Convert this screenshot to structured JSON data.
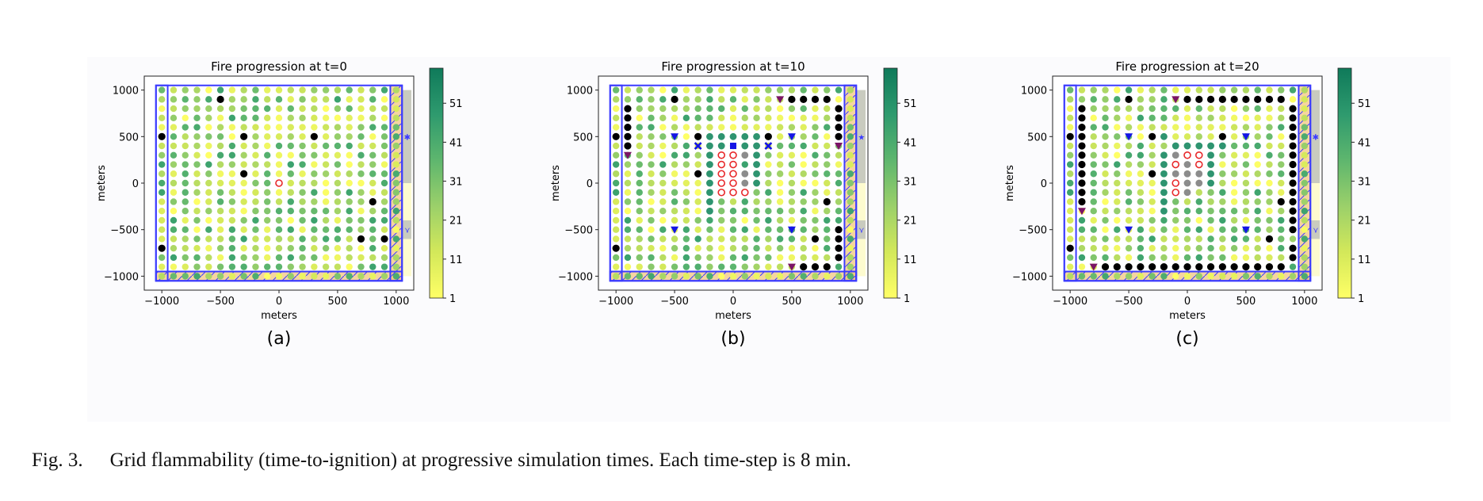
{
  "colors": {
    "cmap": [
      "#ffff66",
      "#d3e85a",
      "#9bd06a",
      "#5eb66e",
      "#2e9a6e",
      "#0f7a5a"
    ],
    "fire_dot": "#000000",
    "burning_ring": "#e8282a",
    "burnt": "#8c8c8c",
    "blue_rect": "#3b3bff",
    "hatch_fill": "#f2c27a",
    "grey_band": "#c9cbbf",
    "yellow_band": "#fdfbcf",
    "purple_marker": "#7b1466",
    "blue_marker": "#1414e6"
  },
  "chart_data": [
    {
      "type": "scatter",
      "title": "Fire progression at t=0",
      "sublabel": "(a)",
      "xlabel": "meters",
      "ylabel": "meters",
      "xlim": [
        -1150,
        1150
      ],
      "ylim": [
        -1150,
        1150
      ],
      "xticks": [
        -1000,
        -500,
        0,
        500,
        1000
      ],
      "xtick_labels": [
        "−1000",
        "−500",
        "0",
        "500",
        "1000"
      ],
      "yticks": [
        -1000,
        -500,
        0,
        500,
        1000
      ],
      "ytick_labels": [
        "−1000",
        "−500",
        "0",
        "500",
        "1000"
      ],
      "colorbar_ticks": [
        "1",
        "11",
        "21",
        "31",
        "41",
        "51"
      ],
      "fire_points": [
        [
          -500,
          900
        ],
        [
          -1000,
          500
        ],
        [
          -300,
          500
        ],
        [
          300,
          500
        ],
        [
          -300,
          100
        ],
        [
          800,
          -200
        ],
        [
          700,
          -600
        ],
        [
          900,
          -600
        ],
        [
          -1000,
          -700
        ]
      ],
      "burning_points": [
        [
          0,
          0
        ]
      ],
      "burnt_points": [],
      "teal_points": [],
      "purple_markers": [],
      "blue_markers": [],
      "side_markers": [
        "✱",
        "⋎"
      ]
    },
    {
      "type": "scatter",
      "title": "Fire progression at t=10",
      "sublabel": "(b)",
      "xlabel": "meters",
      "ylabel": "meters",
      "xlim": [
        -1150,
        1150
      ],
      "ylim": [
        -1150,
        1150
      ],
      "xticks": [
        -1000,
        -500,
        0,
        500,
        1000
      ],
      "xtick_labels": [
        "−1000",
        "−500",
        "0",
        "500",
        "1000"
      ],
      "yticks": [
        -1000,
        -500,
        0,
        500,
        1000
      ],
      "ytick_labels": [
        "−1000",
        "−500",
        "0",
        "500",
        "1000"
      ],
      "colorbar_ticks": [
        "1",
        "11",
        "21",
        "31",
        "41",
        "51"
      ],
      "fire_points": [
        [
          -500,
          900
        ],
        [
          -900,
          800
        ],
        [
          -900,
          700
        ],
        [
          -900,
          600
        ],
        [
          -900,
          500
        ],
        [
          -900,
          400
        ],
        [
          -1000,
          500
        ],
        [
          -300,
          500
        ],
        [
          300,
          500
        ],
        [
          -300,
          100
        ],
        [
          500,
          900
        ],
        [
          600,
          900
        ],
        [
          700,
          900
        ],
        [
          800,
          900
        ],
        [
          900,
          800
        ],
        [
          900,
          700
        ],
        [
          900,
          600
        ],
        [
          900,
          500
        ],
        [
          800,
          -200
        ],
        [
          700,
          -600
        ],
        [
          900,
          -500
        ],
        [
          900,
          -600
        ],
        [
          900,
          -700
        ],
        [
          900,
          -800
        ],
        [
          600,
          -900
        ],
        [
          700,
          -900
        ],
        [
          800,
          -900
        ],
        [
          -1000,
          -700
        ]
      ],
      "burning_points": [
        [
          -100,
          300
        ],
        [
          0,
          300
        ],
        [
          -100,
          200
        ],
        [
          0,
          200
        ],
        [
          -100,
          100
        ],
        [
          0,
          100
        ],
        [
          -100,
          0
        ],
        [
          0,
          0
        ],
        [
          -100,
          -100
        ],
        [
          0,
          -100
        ],
        [
          100,
          -100
        ]
      ],
      "burnt_points": [
        [
          100,
          300
        ],
        [
          100,
          100
        ],
        [
          100,
          0
        ]
      ],
      "teal_points": [
        [
          -200,
          500
        ],
        [
          -100,
          500
        ],
        [
          0,
          500
        ],
        [
          100,
          500
        ],
        [
          200,
          500
        ],
        [
          -200,
          400
        ],
        [
          -100,
          400
        ],
        [
          100,
          400
        ],
        [
          200,
          400
        ],
        [
          -200,
          300
        ],
        [
          200,
          300
        ],
        [
          -200,
          200
        ],
        [
          200,
          200
        ],
        [
          -200,
          100
        ],
        [
          200,
          100
        ],
        [
          -200,
          0
        ],
        [
          200,
          0
        ],
        [
          -200,
          -100
        ],
        [
          -200,
          -200
        ],
        [
          -200,
          -300
        ]
      ],
      "purple_markers": [
        [
          -900,
          300
        ],
        [
          400,
          900
        ],
        [
          900,
          400
        ],
        [
          500,
          -900
        ]
      ],
      "blue_markers": [
        [
          -500,
          500
        ],
        [
          500,
          500
        ],
        [
          -500,
          -500
        ],
        [
          500,
          -500
        ]
      ],
      "blue_x_markers": [
        [
          -300,
          400
        ],
        [
          300,
          400
        ]
      ],
      "blue_square_markers": [
        [
          0,
          400
        ]
      ],
      "side_markers": [
        "★",
        "⋎"
      ]
    },
    {
      "type": "scatter",
      "title": "Fire progression at t=20",
      "sublabel": "(c)",
      "xlabel": "meters",
      "ylabel": "meters",
      "xlim": [
        -1150,
        1150
      ],
      "ylim": [
        -1150,
        1150
      ],
      "xticks": [
        -1000,
        -500,
        0,
        500,
        1000
      ],
      "xtick_labels": [
        "−1000",
        "−500",
        "0",
        "500",
        "1000"
      ],
      "yticks": [
        -1000,
        -500,
        0,
        500,
        1000
      ],
      "ytick_labels": [
        "−1000",
        "−500",
        "0",
        "500",
        "1000"
      ],
      "colorbar_ticks": [
        "1",
        "11",
        "21",
        "31",
        "41",
        "51"
      ],
      "fire_points": [
        [
          -500,
          900
        ],
        [
          -900,
          800
        ],
        [
          -900,
          700
        ],
        [
          -900,
          600
        ],
        [
          -900,
          500
        ],
        [
          -900,
          400
        ],
        [
          -900,
          300
        ],
        [
          -900,
          200
        ],
        [
          -900,
          100
        ],
        [
          -900,
          0
        ],
        [
          -900,
          -100
        ],
        [
          -900,
          -200
        ],
        [
          -1000,
          500
        ],
        [
          -300,
          500
        ],
        [
          300,
          500
        ],
        [
          -300,
          100
        ],
        [
          0,
          900
        ],
        [
          100,
          900
        ],
        [
          200,
          900
        ],
        [
          300,
          900
        ],
        [
          400,
          900
        ],
        [
          500,
          900
        ],
        [
          600,
          900
        ],
        [
          700,
          900
        ],
        [
          800,
          900
        ],
        [
          900,
          800
        ],
        [
          900,
          700
        ],
        [
          900,
          600
        ],
        [
          900,
          500
        ],
        [
          900,
          400
        ],
        [
          900,
          300
        ],
        [
          900,
          200
        ],
        [
          900,
          100
        ],
        [
          900,
          0
        ],
        [
          900,
          -100
        ],
        [
          900,
          -200
        ],
        [
          900,
          -300
        ],
        [
          900,
          -400
        ],
        [
          900,
          -500
        ],
        [
          900,
          -700
        ],
        [
          900,
          -800
        ],
        [
          800,
          -200
        ],
        [
          700,
          -600
        ],
        [
          -1000,
          -700
        ],
        [
          -700,
          -900
        ],
        [
          -600,
          -900
        ],
        [
          -500,
          -900
        ],
        [
          -400,
          -900
        ],
        [
          -300,
          -900
        ],
        [
          -200,
          -900
        ],
        [
          -100,
          -900
        ],
        [
          0,
          -900
        ],
        [
          100,
          -900
        ],
        [
          200,
          -900
        ],
        [
          300,
          -900
        ],
        [
          400,
          -900
        ],
        [
          500,
          -900
        ],
        [
          600,
          -900
        ],
        [
          700,
          -900
        ],
        [
          800,
          -900
        ]
      ],
      "burning_points": [
        [
          0,
          300
        ],
        [
          100,
          300
        ],
        [
          -100,
          200
        ],
        [
          100,
          200
        ],
        [
          -100,
          0
        ],
        [
          -100,
          -100
        ]
      ],
      "burnt_points": [
        [
          -100,
          300
        ],
        [
          0,
          200
        ],
        [
          -100,
          100
        ],
        [
          0,
          100
        ],
        [
          100,
          100
        ],
        [
          0,
          0
        ],
        [
          100,
          0
        ],
        [
          0,
          -100
        ]
      ],
      "teal_points": [
        [
          -200,
          500
        ],
        [
          -100,
          400
        ],
        [
          0,
          400
        ],
        [
          100,
          400
        ],
        [
          200,
          400
        ],
        [
          300,
          400
        ],
        [
          -200,
          300
        ],
        [
          200,
          300
        ],
        [
          -200,
          200
        ],
        [
          200,
          200
        ],
        [
          -200,
          100
        ],
        [
          200,
          100
        ],
        [
          -200,
          0
        ],
        [
          200,
          0
        ],
        [
          -200,
          -100
        ],
        [
          -200,
          -200
        ],
        [
          -200,
          -300
        ]
      ],
      "purple_markers": [
        [
          -900,
          -300
        ],
        [
          -100,
          900
        ],
        [
          -800,
          -900
        ]
      ],
      "blue_markers": [
        [
          -500,
          500
        ],
        [
          500,
          500
        ],
        [
          -500,
          -500
        ],
        [
          500,
          -500
        ]
      ],
      "blue_x_markers": [],
      "blue_square_markers": [],
      "side_markers": [
        "✱",
        "⋎"
      ]
    }
  ],
  "caption": {
    "label": "Fig. 3.",
    "text": "Grid flammability (time-to-ignition) at progressive simulation times. Each time-step is 8 min."
  }
}
